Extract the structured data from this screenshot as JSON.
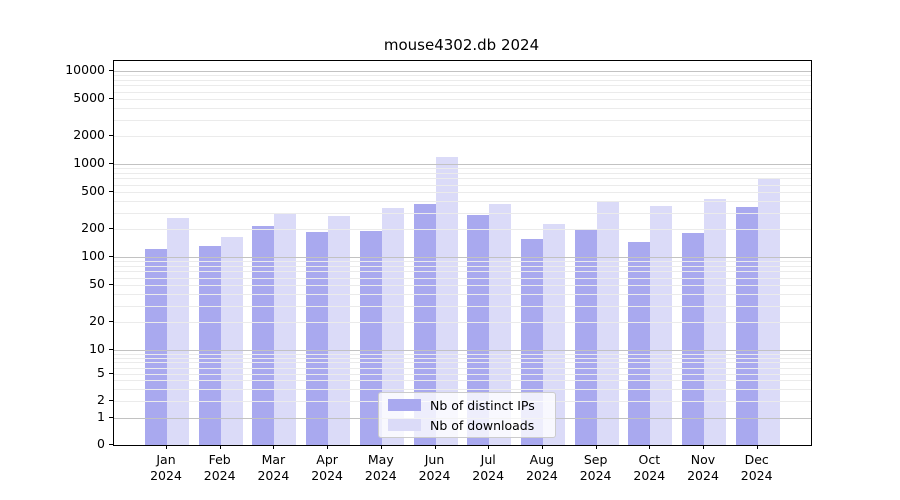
{
  "title": "mouse4302.db 2024",
  "legend": {
    "items": [
      {
        "label": "Nb of distinct IPs"
      },
      {
        "label": "Nb of downloads"
      }
    ]
  },
  "colors": {
    "distinct_ips": "#a9a9ef",
    "downloads": "#dbdbf8",
    "major_grid": "#c2c2c2",
    "minor_grid": "#ebebeb",
    "axis": "#000000"
  },
  "y_axis": {
    "tick_labels": [
      "0",
      "1",
      "2",
      "5",
      "10",
      "20",
      "50",
      "100",
      "200",
      "500",
      "1000",
      "2000",
      "5000",
      "10000"
    ]
  },
  "x_axis": {
    "tick_labels_line1": [
      "Jan",
      "Feb",
      "Mar",
      "Apr",
      "May",
      "Jun",
      "Jul",
      "Aug",
      "Sep",
      "Oct",
      "Nov",
      "Dec"
    ],
    "tick_labels_line2": [
      "2024",
      "2024",
      "2024",
      "2024",
      "2024",
      "2024",
      "2024",
      "2024",
      "2024",
      "2024",
      "2024",
      "2024"
    ]
  },
  "chart_data": {
    "type": "bar",
    "title": "mouse4302.db 2024",
    "categories": [
      "Jan 2024",
      "Feb 2024",
      "Mar 2024",
      "Apr 2024",
      "May 2024",
      "Jun 2024",
      "Jul 2024",
      "Aug 2024",
      "Sep 2024",
      "Oct 2024",
      "Nov 2024",
      "Dec 2024"
    ],
    "series": [
      {
        "name": "Nb of distinct IPs",
        "color": "#a9a9ef",
        "values": [
          121,
          130,
          215,
          187,
          192,
          375,
          283,
          155,
          199,
          144,
          182,
          342
        ]
      },
      {
        "name": "Nb of downloads",
        "color": "#dbdbf8",
        "values": [
          264,
          164,
          300,
          277,
          333,
          1190,
          371,
          225,
          392,
          350,
          420,
          690
        ]
      }
    ],
    "yscale": "symlog",
    "yticks": [
      0,
      1,
      2,
      5,
      10,
      20,
      50,
      100,
      200,
      500,
      1000,
      2000,
      5000,
      10000
    ],
    "ylim": [
      0,
      13000
    ],
    "grid": true,
    "legend_position": "lower center"
  }
}
